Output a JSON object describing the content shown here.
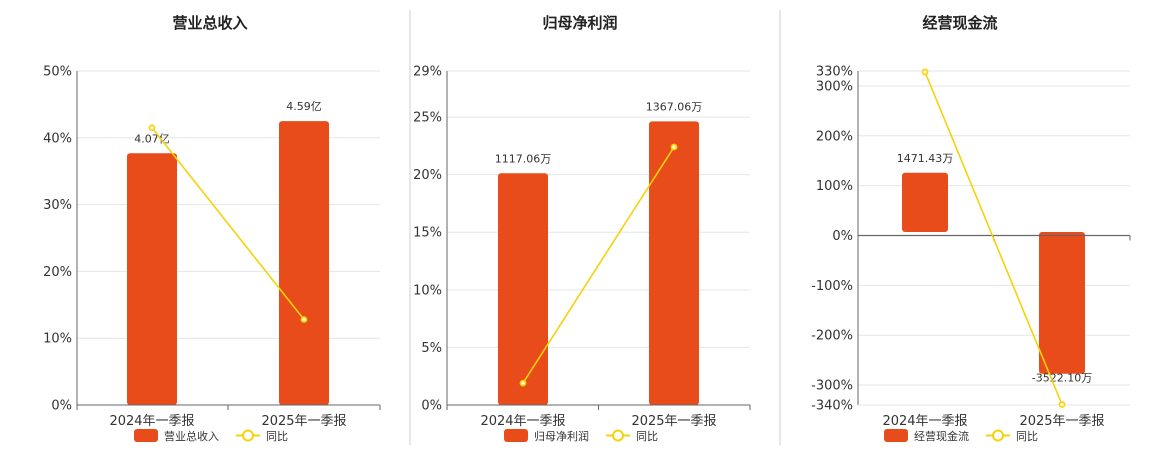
{
  "colors": {
    "bar": "#e84c1a",
    "line": "#f5d20a"
  },
  "chart_data": [
    {
      "type": "bar",
      "title": "营业总收入",
      "categories": [
        "2024年一季报",
        "2025年一季报"
      ],
      "bar_values": [
        4.07,
        4.59
      ],
      "bar_labels": [
        "4.07亿",
        "4.59亿"
      ],
      "bar_unit": "亿",
      "bar_range": [
        0,
        5.4
      ],
      "line_values": [
        41.5,
        12.8
      ],
      "ylim": [
        0,
        50
      ],
      "yticks": [
        0,
        10,
        20,
        30,
        40,
        50
      ],
      "ytick_labels": [
        "0%",
        "10%",
        "20%",
        "30%",
        "40%",
        "50%"
      ],
      "legend": [
        "营业总收入",
        "同比"
      ]
    },
    {
      "type": "bar",
      "title": "归母净利润",
      "categories": [
        "2024年一季报",
        "2025年一季报"
      ],
      "bar_values": [
        1117.06,
        1367.06
      ],
      "bar_labels": [
        "1117.06万",
        "1367.06万"
      ],
      "bar_unit": "万",
      "bar_range": [
        0,
        1610
      ],
      "line_values": [
        1.9,
        22.4
      ],
      "ylim": [
        0,
        29
      ],
      "yticks": [
        0,
        5,
        10,
        15,
        20,
        25,
        29
      ],
      "ytick_labels": [
        "0%",
        "5%",
        "10%",
        "15%",
        "20%",
        "25%",
        "29%"
      ],
      "legend": [
        "归母净利润",
        "同比"
      ]
    },
    {
      "type": "bar",
      "title": "经营现金流",
      "categories": [
        "2024年一季报",
        "2025年一季报"
      ],
      "bar_values": [
        1471.43,
        -3522.1
      ],
      "bar_labels": [
        "1471.43万",
        "-3522.10万"
      ],
      "bar_unit": "万",
      "bar_range": [
        -4300,
        4000
      ],
      "line_values": [
        328,
        -339
      ],
      "ylim": [
        -340,
        330
      ],
      "yticks": [
        -340,
        -300,
        -200,
        -100,
        0,
        100,
        200,
        300,
        330
      ],
      "ytick_labels": [
        "-340%",
        "-300%",
        "-200%",
        "-100%",
        "0%",
        "100%",
        "200%",
        "300%",
        "330%"
      ],
      "legend": [
        "经营现金流",
        "同比"
      ]
    }
  ]
}
